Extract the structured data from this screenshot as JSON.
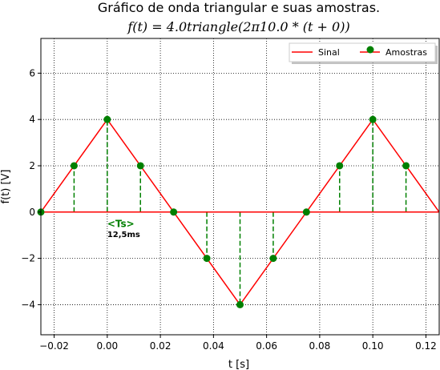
{
  "chart_data": {
    "type": "line",
    "title": "Gráfico de onda triangular e suas amostras.",
    "subtitle": "f(t) = 4.0triangle(2π10.0 * (t + 0))",
    "xlabel": "t [s]",
    "ylabel": "f(t) [V]",
    "xlim": [
      -0.025,
      0.125
    ],
    "ylim": [
      -5.3,
      7.5
    ],
    "xticks": [
      -0.02,
      0.0,
      0.02,
      0.04,
      0.06,
      0.08,
      0.1,
      0.12
    ],
    "xtick_labels": [
      "−0.02",
      "0.00",
      "0.02",
      "0.04",
      "0.06",
      "0.08",
      "0.10",
      "0.12"
    ],
    "yticks": [
      -4,
      -2,
      0,
      2,
      4,
      6
    ],
    "ytick_labels": [
      "−4",
      "−2",
      "0",
      "2",
      "4",
      "6"
    ],
    "grid": true,
    "legend_position": "top-right",
    "series": [
      {
        "name": "Sinal",
        "style": "line",
        "color": "#ff0000",
        "x": [
          -0.025,
          0.0,
          0.05,
          0.1,
          0.125
        ],
        "y": [
          0,
          4,
          -4,
          4,
          0
        ]
      },
      {
        "name": "Amostras",
        "style": "stem",
        "color": "#008000",
        "x": [
          -0.025,
          -0.0125,
          0.0,
          0.0125,
          0.025,
          0.0375,
          0.05,
          0.0625,
          0.075,
          0.0875,
          0.1,
          0.1125
        ],
        "y": [
          0,
          2,
          4,
          2,
          0,
          -2,
          -4,
          -2,
          0,
          2,
          4,
          2
        ]
      }
    ],
    "annotations": [
      {
        "text": "<Ts>",
        "x": 0.0,
        "y": -0.3,
        "color": "#008000"
      },
      {
        "text": "12,5ms",
        "x": 0.0,
        "y": -0.8,
        "color": "#000000"
      }
    ]
  }
}
